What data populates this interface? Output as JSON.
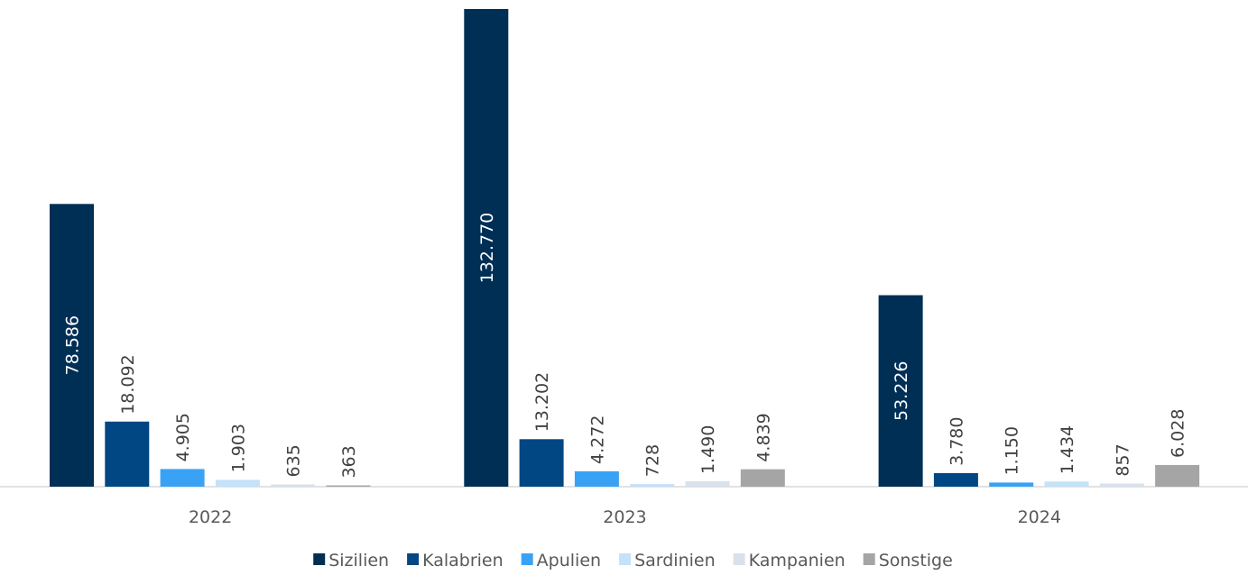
{
  "chart_data": {
    "type": "bar",
    "categories": [
      "2022",
      "2023",
      "2024"
    ],
    "series": [
      {
        "name": "Sizilien",
        "color": "#002f56",
        "values": [
          78586,
          132770,
          53226
        ],
        "value_labels": [
          "78.586",
          "132.770",
          "53.226"
        ]
      },
      {
        "name": "Kalabrien",
        "color": "#004784",
        "values": [
          18092,
          13202,
          3780
        ],
        "value_labels": [
          "18.092",
          "13.202",
          "3.780"
        ]
      },
      {
        "name": "Apulien",
        "color": "#3aa2f5",
        "values": [
          4905,
          4272,
          1150
        ],
        "value_labels": [
          "4.905",
          "4.272",
          "1.150"
        ]
      },
      {
        "name": "Sardinien",
        "color": "#c4e2f9",
        "values": [
          1903,
          728,
          1434
        ],
        "value_labels": [
          "1.903",
          "728",
          "1.434"
        ]
      },
      {
        "name": "Kampanien",
        "color": "#d9e1ea",
        "values": [
          635,
          1490,
          857
        ],
        "value_labels": [
          "635",
          "1.490",
          "857"
        ]
      },
      {
        "name": "Sonstige",
        "color": "#a5a5a5",
        "values": [
          363,
          4839,
          6028
        ],
        "value_labels": [
          "363",
          "4.839",
          "6.028"
        ]
      }
    ],
    "legend": "bottom"
  }
}
